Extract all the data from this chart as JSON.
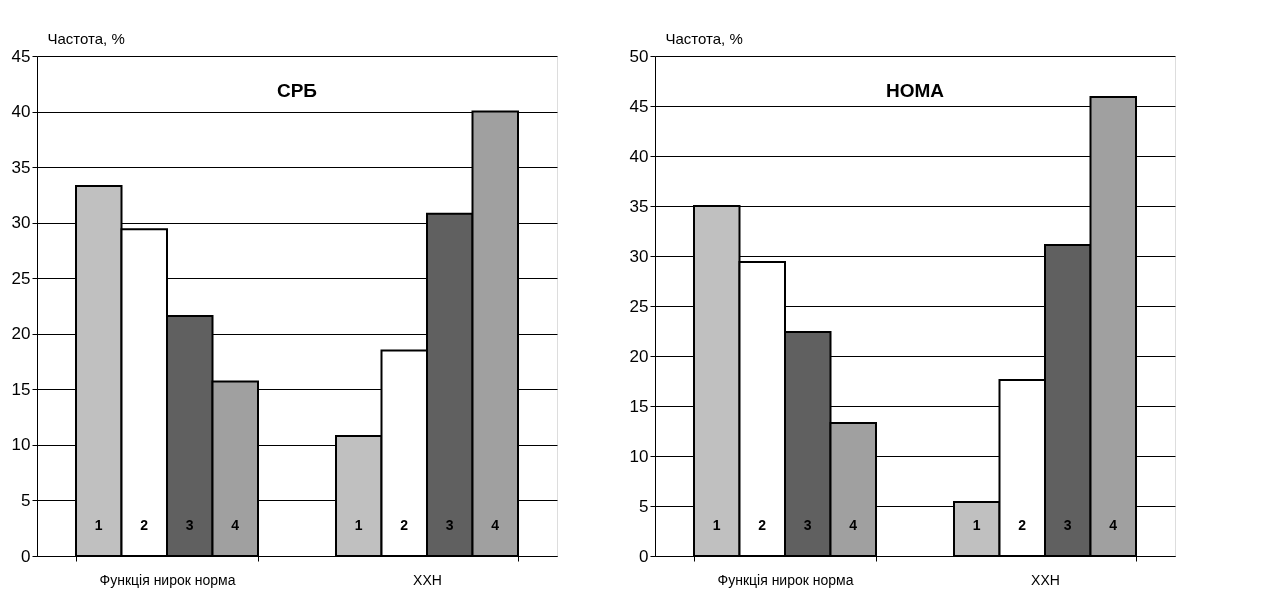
{
  "chart_data": [
    {
      "type": "bar",
      "title": "СРБ",
      "ylabel": "Частота, %",
      "categories": [
        "Функція нирок норма",
        "ХХН"
      ],
      "ylim": [
        0,
        45
      ],
      "yticks": [
        0,
        5,
        10,
        15,
        20,
        25,
        30,
        35,
        40,
        45
      ],
      "grid": "y",
      "legend": false,
      "series": [
        {
          "name": "1",
          "color": "#c0c0c0",
          "values": [
            33.3,
            10.8
          ]
        },
        {
          "name": "2",
          "color": "#ffffff",
          "values": [
            29.4,
            18.5
          ]
        },
        {
          "name": "3",
          "color": "#606060",
          "values": [
            21.6,
            30.8
          ]
        },
        {
          "name": "4",
          "color": "#a0a0a0",
          "values": [
            15.7,
            40.0
          ]
        }
      ]
    },
    {
      "type": "bar",
      "title": "НОМА",
      "ylabel": "Частота, %",
      "categories": [
        "Функція нирок норма",
        "ХХН"
      ],
      "ylim": [
        0,
        50
      ],
      "yticks": [
        0,
        5,
        10,
        15,
        20,
        25,
        30,
        35,
        40,
        45,
        50
      ],
      "grid": "y",
      "legend": false,
      "series": [
        {
          "name": "1",
          "color": "#c0c0c0",
          "values": [
            35.0,
            5.4
          ]
        },
        {
          "name": "2",
          "color": "#ffffff",
          "values": [
            29.4,
            17.6
          ]
        },
        {
          "name": "3",
          "color": "#606060",
          "values": [
            22.4,
            31.1
          ]
        },
        {
          "name": "4",
          "color": "#a0a0a0",
          "values": [
            13.3,
            45.9
          ]
        }
      ]
    }
  ]
}
